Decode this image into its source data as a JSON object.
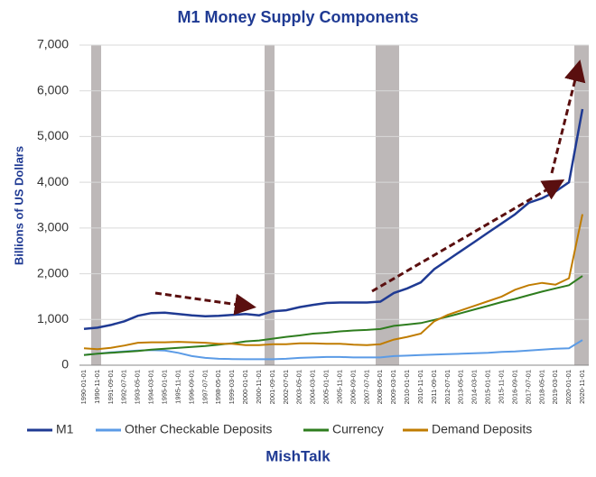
{
  "chart_data": {
    "type": "line",
    "title": "M1 Money Supply Components",
    "y_label": "Billions of US Dollars",
    "source": "MishTalk",
    "categories": [
      "1990-01-01",
      "1990-11-01",
      "1991-09-01",
      "1992-07-01",
      "1993-05-01",
      "1994-03-01",
      "1995-01-01",
      "1995-11-01",
      "1996-09-01",
      "1997-07-01",
      "1998-05-01",
      "1999-03-01",
      "2000-01-01",
      "2000-11-01",
      "2001-09-01",
      "2002-07-01",
      "2003-05-01",
      "2004-03-01",
      "2005-01-01",
      "2005-11-01",
      "2006-09-01",
      "2007-07-01",
      "2008-05-01",
      "2009-03-01",
      "2010-01-01",
      "2010-11-01",
      "2011-09-01",
      "2012-07-01",
      "2013-05-01",
      "2014-03-01",
      "2015-01-01",
      "2015-11-01",
      "2016-09-01",
      "2017-07-01",
      "2018-05-01",
      "2019-03-01",
      "2020-01-01",
      "2020-11-01"
    ],
    "series": [
      {
        "name": "M1",
        "color": "#1f3a93",
        "values": [
          795,
          820,
          880,
          960,
          1080,
          1140,
          1150,
          1120,
          1090,
          1070,
          1080,
          1100,
          1120,
          1090,
          1180,
          1200,
          1270,
          1320,
          1360,
          1370,
          1370,
          1370,
          1390,
          1580,
          1680,
          1810,
          2100,
          2300,
          2500,
          2700,
          2900,
          3100,
          3300,
          3550,
          3650,
          3800,
          4000,
          5600
        ]
      },
      {
        "name": "Other Checkable Deposits",
        "color": "#5b9be6",
        "values": [
          225,
          250,
          280,
          300,
          320,
          330,
          320,
          270,
          200,
          160,
          140,
          135,
          130,
          130,
          130,
          140,
          160,
          170,
          180,
          180,
          170,
          170,
          170,
          200,
          210,
          220,
          230,
          240,
          250,
          260,
          270,
          290,
          300,
          320,
          340,
          360,
          370,
          550
        ]
      },
      {
        "name": "Currency",
        "color": "#2e7d1e",
        "values": [
          220,
          250,
          270,
          290,
          310,
          340,
          360,
          380,
          400,
          420,
          450,
          480,
          520,
          540,
          580,
          620,
          650,
          690,
          710,
          740,
          760,
          770,
          790,
          860,
          890,
          920,
          990,
          1060,
          1140,
          1220,
          1300,
          1380,
          1450,
          1530,
          1610,
          1680,
          1750,
          1950
        ]
      },
      {
        "name": "Demand Deposits",
        "color": "#c07c00",
        "values": [
          370,
          350,
          380,
          430,
          490,
          500,
          500,
          510,
          500,
          490,
          470,
          470,
          440,
          440,
          460,
          460,
          480,
          480,
          470,
          470,
          450,
          440,
          460,
          560,
          620,
          690,
          960,
          1100,
          1200,
          1300,
          1400,
          1500,
          1650,
          1750,
          1800,
          1760,
          1900,
          3300
        ]
      }
    ],
    "ylim": [
      0,
      7000
    ],
    "yticks": [
      0,
      {
        "value": 1000,
        "label": "1,000"
      },
      {
        "value": 2000,
        "label": "2,000"
      },
      {
        "value": 3000,
        "label": "3,000"
      },
      {
        "value": 4000,
        "label": "4,000"
      },
      {
        "value": 5000,
        "label": "5,000"
      },
      {
        "value": 6000,
        "label": "6,000"
      },
      {
        "value": 7000,
        "label": "7,000"
      }
    ],
    "grid": true
  }
}
